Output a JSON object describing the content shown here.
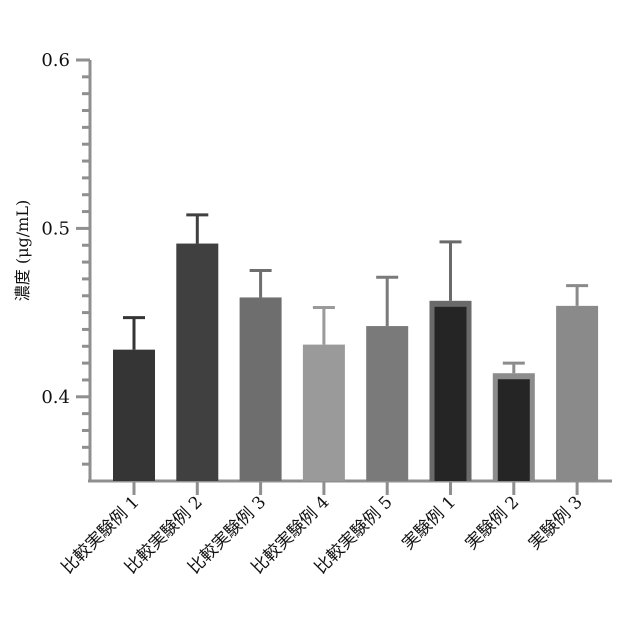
{
  "chart_data": {
    "type": "bar",
    "categories": [
      "比較実験例 1",
      "比較実験例 2",
      "比較実験例 3",
      "比較実験例 4",
      "比較実験例 5",
      "実験例 1",
      "実験例 2",
      "実験例 3"
    ],
    "values": [
      0.428,
      0.491,
      0.459,
      0.431,
      0.442,
      0.457,
      0.414,
      0.454
    ],
    "error_upper": [
      0.447,
      0.508,
      0.475,
      0.453,
      0.471,
      0.492,
      0.42,
      0.466
    ],
    "bar_colors": [
      "#353535",
      "#404040",
      "#6e6e6e",
      "#9a9a9a",
      "#7a7a7a",
      "#6a6a6a",
      "#8c8c8c",
      "#8a8a8a"
    ],
    "inner_bar_colors": [
      null,
      null,
      null,
      null,
      null,
      "#252525",
      "#252525",
      null
    ],
    "title": "",
    "xlabel": "",
    "ylabel": "濃度 (μg/mL)",
    "ylim": [
      0.35,
      0.6
    ],
    "yticks": [
      0.4,
      0.5,
      0.6
    ],
    "ytick_labels": [
      "0.4",
      "0.5",
      "0.6"
    ],
    "grid": false,
    "legend": "none"
  }
}
